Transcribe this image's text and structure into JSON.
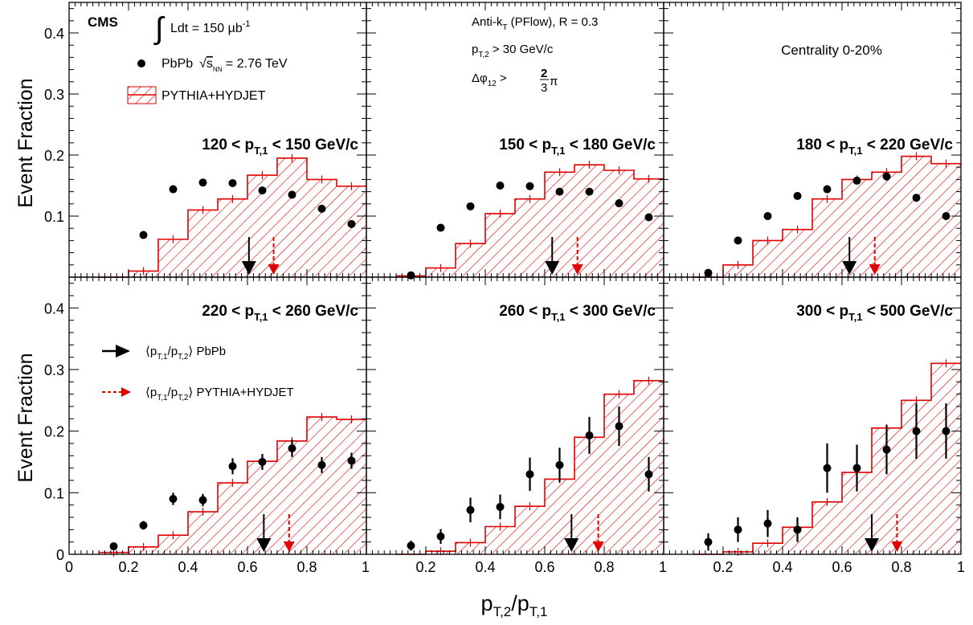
{
  "figure": {
    "experiment": "CMS",
    "lumi_prefix": "Ldt = 150 µb",
    "lumi_exponent": "-1",
    "legend": {
      "data_prefix": "PbPb",
      "data_energy_suffix": "s",
      "data_energy_subscript": "NN",
      "data_energy_value": " = 2.76 TeV",
      "mc": "PYTHIA+HYDJET",
      "arrow_data": "PbPb",
      "arrow_mc": "PYTHIA+HYDJET"
    },
    "cuts": {
      "algo_prefix": "Anti-k",
      "algo_sub": "T",
      "algo_suffix": " (PFlow), R = 0.3",
      "pt2_prefix": "p",
      "pt2_sub": "T,2",
      "pt2_suffix": " > 30 GeV/c",
      "dphi_prefix": "Δφ",
      "dphi_sub": "12",
      "dphi_suffix": " > ",
      "dphi_num": "2",
      "dphi_den": "3",
      "dphi_pi": "π"
    },
    "centrality": "Centrality 0-20%",
    "ylabel": "Event Fraction",
    "xlabel": {
      "p": "p",
      "sub1": "T,2",
      "slash": "/p",
      "sub2": "T,1"
    },
    "colors": {
      "data": "#000000",
      "mc": "#e00000"
    }
  },
  "chart_data": [
    {
      "type": "bar",
      "range": {
        "lo": "120",
        "hi": "150"
      },
      "x": [
        0.15,
        0.25,
        0.35,
        0.45,
        0.55,
        0.65,
        0.75,
        0.85,
        0.95
      ],
      "data_y": [
        0.0,
        0.069,
        0.144,
        0.155,
        0.154,
        0.142,
        0.135,
        0.112,
        0.087
      ],
      "data_err": [
        0,
        0,
        0,
        0,
        0,
        0,
        0,
        0,
        0
      ],
      "mc_edges": [
        0.1,
        0.2,
        0.3,
        0.4,
        0.5,
        0.6,
        0.7,
        0.8,
        0.9,
        1.0
      ],
      "mc_y": [
        0.0,
        0.01,
        0.062,
        0.11,
        0.128,
        0.167,
        0.195,
        0.16,
        0.149
      ],
      "mean_data": 0.605,
      "mean_mc": 0.688,
      "xlim": [
        0,
        1
      ],
      "ylim": [
        0,
        0.45
      ]
    },
    {
      "type": "bar",
      "range": {
        "lo": "150",
        "hi": "180"
      },
      "x": [
        0.15,
        0.25,
        0.35,
        0.45,
        0.55,
        0.65,
        0.75,
        0.85,
        0.95
      ],
      "data_y": [
        0.003,
        0.081,
        0.116,
        0.15,
        0.149,
        0.14,
        0.14,
        0.121,
        0.098
      ],
      "data_err": [
        0,
        0,
        0,
        0,
        0,
        0,
        0,
        0,
        0
      ],
      "mc_edges": [
        0.1,
        0.2,
        0.3,
        0.4,
        0.5,
        0.6,
        0.7,
        0.8,
        0.9,
        1.0
      ],
      "mc_y": [
        0.002,
        0.015,
        0.055,
        0.104,
        0.128,
        0.172,
        0.184,
        0.175,
        0.161
      ],
      "mean_data": 0.625,
      "mean_mc": 0.71,
      "xlim": [
        0,
        1
      ],
      "ylim": [
        0,
        0.45
      ]
    },
    {
      "type": "bar",
      "range": {
        "lo": "180",
        "hi": "220"
      },
      "x": [
        0.15,
        0.25,
        0.35,
        0.45,
        0.55,
        0.65,
        0.75,
        0.85,
        0.95
      ],
      "data_y": [
        0.007,
        0.06,
        0.1,
        0.133,
        0.144,
        0.158,
        0.165,
        0.13,
        0.1
      ],
      "data_err": [
        0,
        0,
        0,
        0.005,
        0.006,
        0.006,
        0.007,
        0,
        0
      ],
      "mc_edges": [
        0.1,
        0.2,
        0.3,
        0.4,
        0.5,
        0.6,
        0.7,
        0.8,
        0.9,
        1.0
      ],
      "mc_y": [
        0.0,
        0.02,
        0.06,
        0.078,
        0.128,
        0.16,
        0.172,
        0.198,
        0.186
      ],
      "mean_data": 0.625,
      "mean_mc": 0.71,
      "xlim": [
        0,
        1
      ],
      "ylim": [
        0,
        0.45
      ]
    },
    {
      "type": "bar",
      "range": {
        "lo": "220",
        "hi": "260"
      },
      "x": [
        0.15,
        0.25,
        0.35,
        0.45,
        0.55,
        0.65,
        0.75,
        0.85,
        0.95
      ],
      "data_y": [
        0.013,
        0.047,
        0.09,
        0.088,
        0.143,
        0.15,
        0.172,
        0.145,
        0.152
      ],
      "data_err": [
        0.004,
        0.007,
        0.01,
        0.01,
        0.013,
        0.013,
        0.014,
        0.013,
        0.013
      ],
      "mc_edges": [
        0.1,
        0.2,
        0.3,
        0.4,
        0.5,
        0.6,
        0.7,
        0.8,
        0.9,
        1.0
      ],
      "mc_y": [
        0.003,
        0.012,
        0.031,
        0.069,
        0.116,
        0.151,
        0.184,
        0.223,
        0.219
      ],
      "mean_data": 0.655,
      "mean_mc": 0.74,
      "xlim": [
        0,
        1
      ],
      "ylim": [
        0,
        0.45
      ]
    },
    {
      "type": "bar",
      "range": {
        "lo": "260",
        "hi": "300"
      },
      "x": [
        0.15,
        0.25,
        0.35,
        0.45,
        0.55,
        0.65,
        0.75,
        0.85,
        0.95
      ],
      "data_y": [
        0.014,
        0.029,
        0.072,
        0.077,
        0.13,
        0.145,
        0.193,
        0.208,
        0.13
      ],
      "data_err": [
        0.008,
        0.012,
        0.02,
        0.02,
        0.027,
        0.028,
        0.03,
        0.032,
        0.028
      ],
      "mc_edges": [
        0.1,
        0.2,
        0.3,
        0.4,
        0.5,
        0.6,
        0.7,
        0.8,
        0.9,
        1.0
      ],
      "mc_y": [
        0.0,
        0.005,
        0.019,
        0.045,
        0.078,
        0.122,
        0.19,
        0.26,
        0.282
      ],
      "mean_data": 0.69,
      "mean_mc": 0.78,
      "xlim": [
        0,
        1
      ],
      "ylim": [
        0,
        0.45
      ]
    },
    {
      "type": "bar",
      "range": {
        "lo": "300",
        "hi": "500"
      },
      "x": [
        0.15,
        0.25,
        0.35,
        0.45,
        0.55,
        0.65,
        0.75,
        0.85,
        0.95
      ],
      "data_y": [
        0.02,
        0.04,
        0.05,
        0.04,
        0.14,
        0.14,
        0.17,
        0.2,
        0.2
      ],
      "data_err": [
        0.014,
        0.02,
        0.022,
        0.02,
        0.04,
        0.038,
        0.04,
        0.045,
        0.045
      ],
      "mc_edges": [
        0.1,
        0.2,
        0.3,
        0.4,
        0.5,
        0.6,
        0.7,
        0.8,
        0.9,
        1.0
      ],
      "mc_y": [
        0.0,
        0.004,
        0.018,
        0.044,
        0.085,
        0.133,
        0.205,
        0.25,
        0.31
      ],
      "mean_data": 0.7,
      "mean_mc": 0.785,
      "xlim": [
        0,
        1
      ],
      "ylim": [
        0,
        0.45
      ]
    }
  ],
  "axes": {
    "y_ticks": [
      "0",
      "0.1",
      "0.2",
      "0.3",
      "0.4"
    ],
    "x_ticks": [
      [
        "0",
        "0.2",
        "0.4",
        "0.6",
        "0.8",
        ""
      ],
      [
        "",
        "0.2",
        "0.4",
        "0.6",
        "0.8",
        ""
      ],
      [
        "",
        "0.2",
        "0.4",
        "0.6",
        "0.8",
        "1"
      ]
    ],
    "x_tick_ones": [
      "1",
      "1"
    ]
  }
}
